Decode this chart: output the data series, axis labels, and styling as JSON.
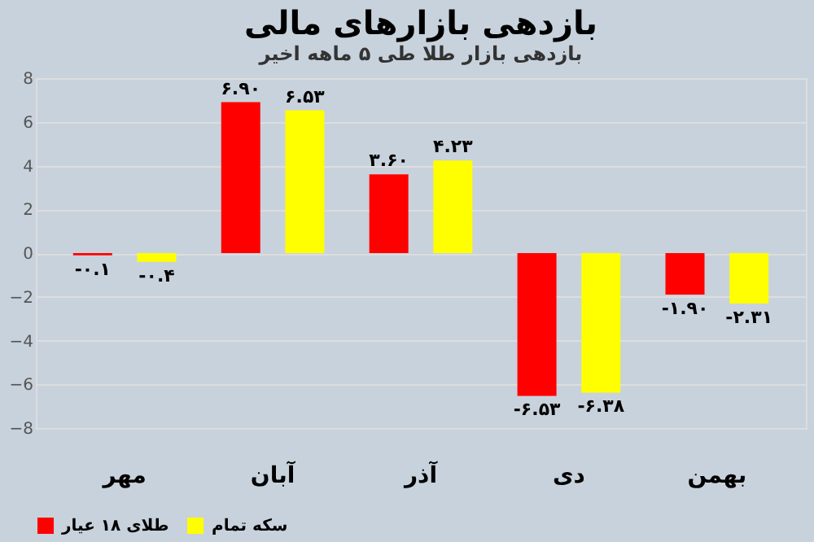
{
  "chart_data": {
    "type": "bar",
    "title": "بازدهی بازارهای مالی",
    "subtitle": "بازدهی بازار طلا طی ۵ ماهه اخیر",
    "categories": [
      "مهر",
      "آبان",
      "آذر",
      "دی",
      "بهمن"
    ],
    "series": [
      {
        "name": "طلای ۱۸ عیار",
        "color": "#ff0000",
        "values": [
          -0.1,
          6.9,
          3.6,
          -6.53,
          -1.9
        ],
        "value_labels": [
          "-۰.۱",
          "۶.۹۰",
          "۳.۶۰",
          "-۶.۵۳",
          "-۱.۹۰"
        ]
      },
      {
        "name": "سکه تمام",
        "color": "#ffff00",
        "values": [
          -0.4,
          6.53,
          4.23,
          -6.38,
          -2.31
        ],
        "value_labels": [
          "-۰.۴",
          "۶.۵۳",
          "۴.۲۳",
          "-۶.۳۸",
          "-۲.۳۱"
        ]
      }
    ],
    "ylim": [
      -8,
      8
    ],
    "yticks": [
      -8,
      -6,
      -4,
      -2,
      0,
      2,
      4,
      6,
      8
    ],
    "grid": "y",
    "legend": "bottom"
  }
}
